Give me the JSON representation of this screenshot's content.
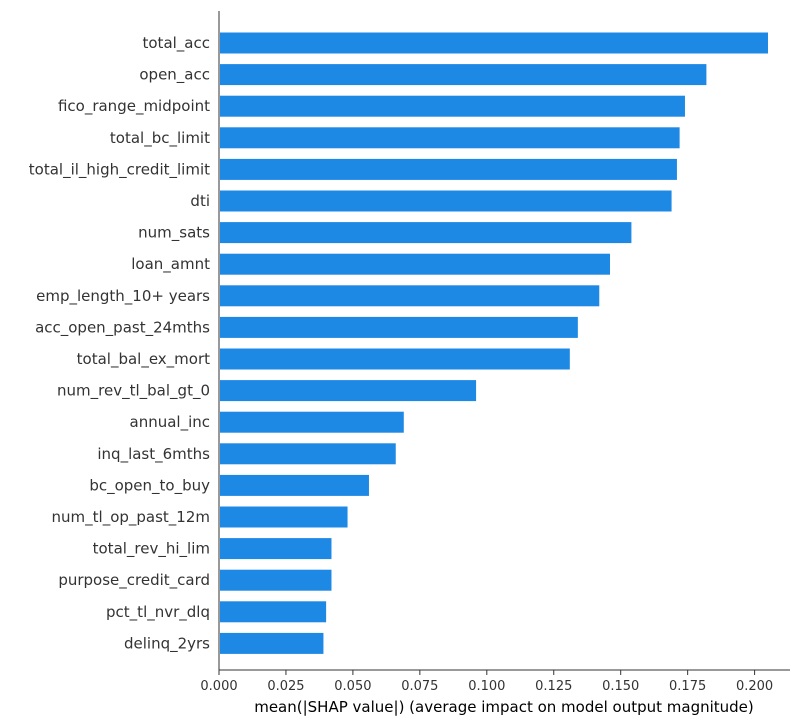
{
  "chart_data": {
    "type": "bar",
    "orientation": "horizontal",
    "title": "",
    "xlabel": "mean(|SHAP value|) (average impact on model output magnitude)",
    "ylabel": "",
    "xlim": [
      0.0,
      0.215
    ],
    "xticks": [
      "0.000",
      "0.025",
      "0.050",
      "0.075",
      "0.100",
      "0.125",
      "0.150",
      "0.175",
      "0.200"
    ],
    "bar_color": "#1e88e5",
    "grid": false,
    "categories": [
      "total_acc",
      "open_acc",
      "fico_range_midpoint",
      "total_bc_limit",
      "total_il_high_credit_limit",
      "dti",
      "num_sats",
      "loan_amnt",
      "emp_length_10+ years",
      "acc_open_past_24mths",
      "total_bal_ex_mort",
      "num_rev_tl_bal_gt_0",
      "annual_inc",
      "inq_last_6mths",
      "bc_open_to_buy",
      "num_tl_op_past_12m",
      "total_rev_hi_lim",
      "purpose_credit_card",
      "pct_tl_nvr_dlq",
      "delinq_2yrs"
    ],
    "values": [
      0.205,
      0.182,
      0.174,
      0.172,
      0.171,
      0.169,
      0.154,
      0.146,
      0.142,
      0.134,
      0.131,
      0.096,
      0.069,
      0.066,
      0.056,
      0.048,
      0.042,
      0.042,
      0.04,
      0.039
    ]
  }
}
